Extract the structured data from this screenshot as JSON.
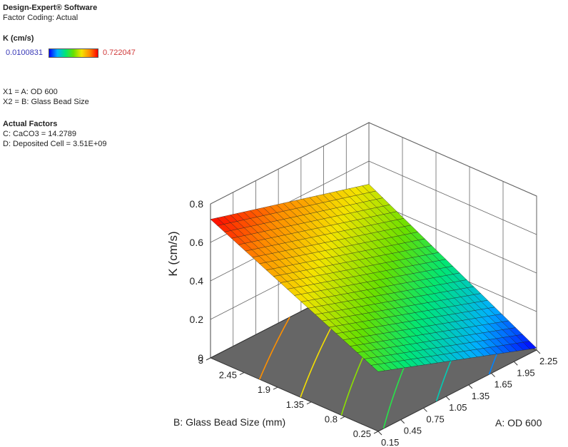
{
  "software": "Design-Expert® Software",
  "factor_coding": "Factor Coding: Actual",
  "response_title": "K (cm/s)",
  "legend": {
    "min_label": "0.0100831",
    "max_label": "0.722047",
    "min": 0.0100831,
    "max": 0.722047
  },
  "factor_defs": [
    "X1 = A: OD 600",
    "X2 = B: Glass Bead Size"
  ],
  "actual_factors_title": "Actual Factors",
  "actual_factors": [
    "C: CaCO3 = 14.2789",
    "D: Deposited Cell = 3.51E+09"
  ],
  "chart_data": {
    "type": "surface",
    "xlabel": "A: OD 600",
    "ylabel": "B: Glass Bead Size (mm)",
    "zlabel": "K (cm/s)",
    "x_range": [
      0.15,
      2.25
    ],
    "y_range": [
      0.25,
      3
    ],
    "z_range": [
      0,
      0.8
    ],
    "x_ticks": [
      "0.15",
      "0.45",
      "0.75",
      "1.05",
      "1.35",
      "1.65",
      "1.95",
      "2.25"
    ],
    "y_ticks": [
      "0.25",
      "0.8",
      "1.35",
      "1.9",
      "2.45",
      "3"
    ],
    "z_ticks": [
      "0",
      "0.2",
      "0.4",
      "0.6",
      "0.8"
    ],
    "corners": [
      {
        "x": 0.15,
        "y": 0.25,
        "z": 0.31
      },
      {
        "x": 2.25,
        "y": 0.25,
        "z": 0.01
      },
      {
        "x": 0.15,
        "y": 3,
        "z": 0.72
      },
      {
        "x": 2.25,
        "y": 3,
        "z": 0.48
      }
    ],
    "contour_levels": [
      0.1,
      0.2,
      0.3,
      0.4,
      0.5,
      0.6
    ],
    "grid": true
  }
}
